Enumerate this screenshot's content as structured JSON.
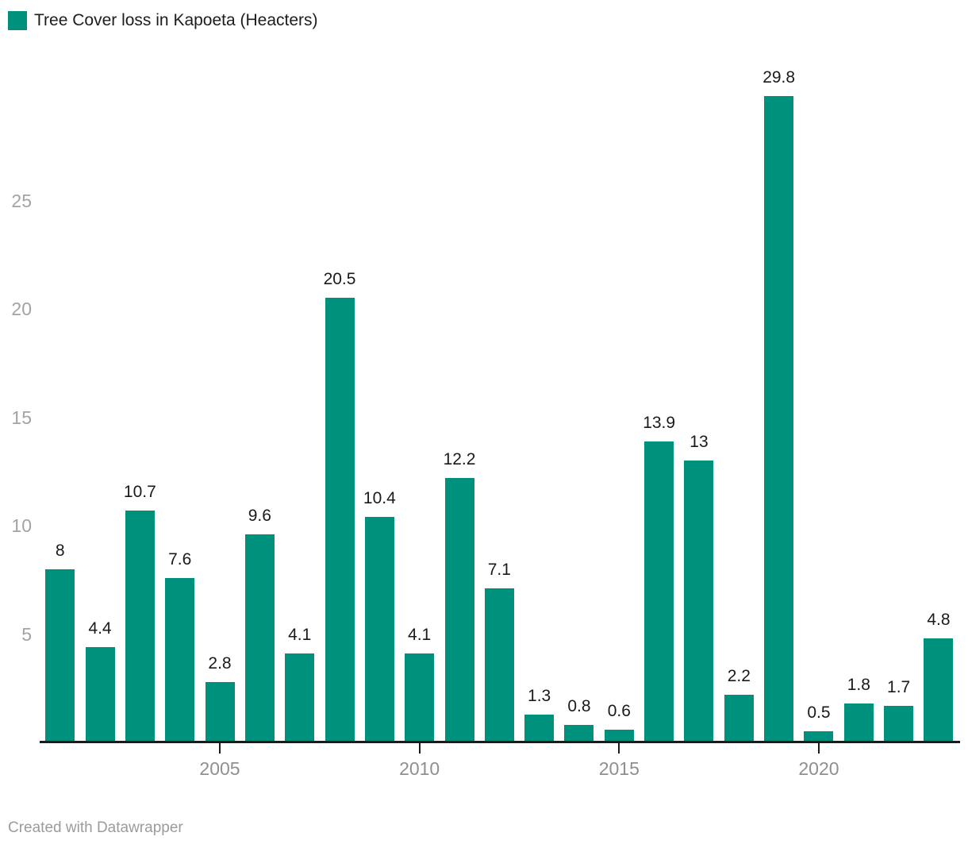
{
  "legend": {
    "label": "Tree Cover loss in Kapoeta (Heacters)"
  },
  "footer": {
    "text": "Created with Datawrapper"
  },
  "chart_data": {
    "type": "bar",
    "title": "Tree Cover loss in Kapoeta (Heacters)",
    "categories": [
      "2001",
      "2002",
      "2003",
      "2004",
      "2005",
      "2006",
      "2007",
      "2008",
      "2009",
      "2010",
      "2011",
      "2012",
      "2013",
      "2014",
      "2015",
      "2016",
      "2017",
      "2018",
      "2019",
      "2020",
      "2021",
      "2022",
      "2023"
    ],
    "values": [
      8,
      4.4,
      10.7,
      7.6,
      2.8,
      9.6,
      4.1,
      20.5,
      10.4,
      4.1,
      12.2,
      7.1,
      1.3,
      0.8,
      0.6,
      13.9,
      13,
      2.2,
      29.8,
      0.5,
      1.8,
      1.7,
      4.8
    ],
    "value_labels": [
      "8",
      "4.4",
      "10.7",
      "7.6",
      "2.8",
      "9.6",
      "4.1",
      "20.5",
      "10.4",
      "4.1",
      "12.2",
      "7.1",
      "1.3",
      "0.8",
      "0.6",
      "13.9",
      "13",
      "2.2",
      "29.8",
      "0.5",
      "1.8",
      "1.7",
      "4.8"
    ],
    "x_tick_labels": [
      "2005",
      "2010",
      "2015",
      "2020"
    ],
    "x_tick_indices": [
      4,
      9,
      14,
      19
    ],
    "y_tick_labels": [
      "5",
      "10",
      "15",
      "20",
      "25"
    ],
    "y_tick_values": [
      5,
      10,
      15,
      20,
      25
    ],
    "ylim": [
      0,
      30
    ],
    "grid": "off",
    "legend_position": "top-left",
    "data_labels": "on",
    "colors": {
      "bar": "#00917c",
      "axis": "#1a1a1a",
      "y_tick_label": "#a3a3a3",
      "x_tick_label": "#8f8f8f",
      "value_label": "#1a1a1a",
      "legend_text": "#1d1d1d",
      "credit_text": "#9b9b9b",
      "background": "#ffffff"
    }
  }
}
